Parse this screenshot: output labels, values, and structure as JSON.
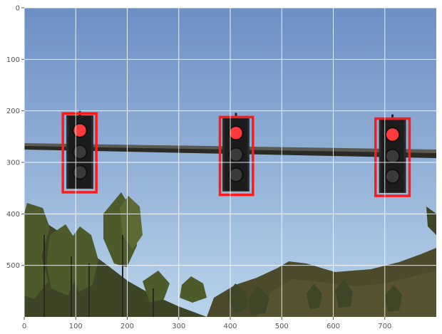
{
  "chart_data": {
    "type": "image",
    "title": "",
    "xlabel": "",
    "ylabel": "",
    "image_size": [
      800,
      600
    ],
    "xlim": [
      0,
      800
    ],
    "ylim": [
      600,
      0
    ],
    "x_ticks": [
      0,
      100,
      200,
      300,
      400,
      500,
      600,
      700
    ],
    "y_ticks": [
      0,
      100,
      200,
      300,
      400,
      500
    ],
    "grid": true,
    "bbox_color": "#ff1a1a",
    "detections": [
      {
        "x0": 75,
        "y0": 205,
        "x1": 140,
        "y1": 358
      },
      {
        "x0": 380,
        "y0": 212,
        "x1": 444,
        "y1": 363
      },
      {
        "x0": 682,
        "y0": 215,
        "x1": 748,
        "y1": 365
      }
    ],
    "traffic_lights": [
      {
        "cx": 108,
        "top": 210,
        "bottom": 350,
        "state": "red"
      },
      {
        "cx": 411,
        "top": 215,
        "bottom": 355,
        "state": "red"
      },
      {
        "cx": 715,
        "top": 218,
        "bottom": 358,
        "state": "red"
      }
    ],
    "scene_colors": {
      "sky_top": "#6d8fc4",
      "sky_bottom": "#b8d3ea",
      "pole": "#3a3a35",
      "housing": "#1c1c1c",
      "lamp_red": "#ff3a3a",
      "lamp_off": "#3a3a3a",
      "hill": "#4d4a2c",
      "tree": "#4d5a2a"
    }
  }
}
